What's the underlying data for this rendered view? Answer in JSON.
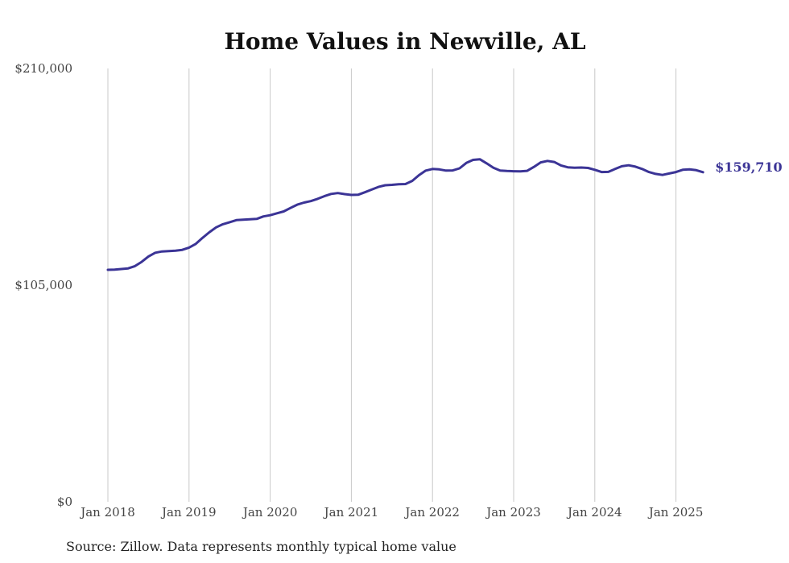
{
  "chart_data": {
    "type": "line",
    "title": "Home Values in Newville, AL",
    "xlabel": "",
    "ylabel": "",
    "ylim": [
      0,
      210000
    ],
    "y_ticks": [
      {
        "value": 0,
        "label": "$0"
      },
      {
        "value": 105000,
        "label": "$105,000"
      },
      {
        "value": 210000,
        "label": "$210,000"
      }
    ],
    "x_ticks": [
      {
        "month_index": 0,
        "label": "Jan 2018"
      },
      {
        "month_index": 12,
        "label": "Jan 2019"
      },
      {
        "month_index": 24,
        "label": "Jan 2020"
      },
      {
        "month_index": 36,
        "label": "Jan 2021"
      },
      {
        "month_index": 48,
        "label": "Jan 2022"
      },
      {
        "month_index": 60,
        "label": "Jan 2023"
      },
      {
        "month_index": 72,
        "label": "Jan 2024"
      },
      {
        "month_index": 84,
        "label": "Jan 2025"
      }
    ],
    "x_axis": "monthly, Jan 2018 – May 2025",
    "grid": "vertical",
    "series": [
      {
        "color": "#3b3496",
        "end_label": "$159,710",
        "values": [
          112400,
          112500,
          112800,
          113100,
          114200,
          116300,
          118900,
          120700,
          121300,
          121500,
          121700,
          122100,
          123200,
          125000,
          127900,
          130600,
          133000,
          134500,
          135500,
          136500,
          136700,
          136900,
          137100,
          138300,
          138900,
          139800,
          140700,
          142400,
          144000,
          145000,
          145700,
          146800,
          148100,
          149200,
          149600,
          149100,
          148700,
          148800,
          150000,
          151300,
          152600,
          153400,
          153600,
          153900,
          154000,
          155500,
          158300,
          160500,
          161300,
          161100,
          160500,
          160600,
          161600,
          164200,
          165700,
          166000,
          164000,
          161900,
          160500,
          160300,
          160200,
          160100,
          160400,
          162300,
          164500,
          165200,
          164700,
          163000,
          162100,
          161900,
          162000,
          161800,
          160900,
          159800,
          159900,
          161300,
          162600,
          163100,
          162400,
          161300,
          159800,
          158900,
          158400,
          159100,
          159800,
          160900,
          161100,
          160700,
          159710
        ]
      }
    ]
  },
  "footer": {
    "source": "Source: Zillow. Data represents monthly typical home value"
  }
}
